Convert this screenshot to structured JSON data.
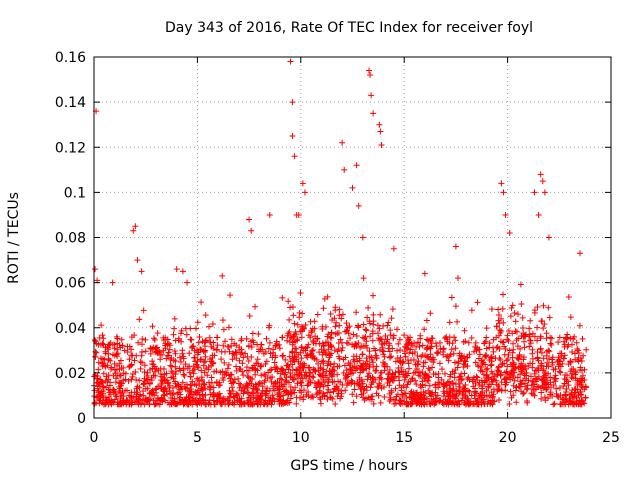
{
  "colors": {
    "series": "#ff0000",
    "axis": "#000000",
    "grid": "#a0a0a0",
    "background": "#ffffff"
  },
  "chart_data": {
    "type": "scatter",
    "title": "Day 343 of 2016, Rate Of TEC Index for receiver foyl",
    "xlabel": "GPS time / hours",
    "ylabel": "ROTI / TECUs",
    "xlim": [
      0,
      25
    ],
    "ylim": [
      0,
      0.16
    ],
    "xticks": [
      0,
      5,
      10,
      15,
      20,
      25
    ],
    "xtick_labels": [
      "0",
      "5",
      "10",
      "15",
      "20",
      "25"
    ],
    "yticks": [
      0,
      0.02,
      0.04,
      0.06,
      0.08,
      0.1,
      0.12,
      0.14,
      0.16
    ],
    "ytick_labels": [
      "0",
      "0.02",
      "0.04",
      "0.06",
      "0.08",
      "0.1",
      "0.12",
      "0.14",
      "0.16"
    ],
    "grid": true,
    "marker": "+",
    "series": [
      {
        "name": "ROTI",
        "note_points": "dense cloud of ~0.005-0.05 TECU values from 0 to 23.8 h; listed points are notable outliers/spikes",
        "x": [
          0.05,
          0.1,
          0.15,
          0.9,
          1.9,
          2.0,
          2.1,
          2.3,
          4.0,
          4.3,
          4.5,
          6.2,
          7.5,
          7.6,
          8.5,
          9.5,
          9.6,
          9.6,
          9.7,
          9.8,
          9.9,
          10.1,
          10.2,
          12.0,
          12.1,
          12.5,
          12.7,
          12.8,
          13.0,
          13.3,
          13.35,
          13.4,
          13.5,
          13.8,
          13.85,
          13.9,
          14.5,
          16.0,
          17.5,
          17.6,
          19.7,
          19.8,
          19.9,
          20.1,
          21.3,
          21.5,
          21.6,
          21.7,
          21.8,
          22.0,
          23.5
        ],
        "y": [
          0.066,
          0.136,
          0.061,
          0.06,
          0.083,
          0.085,
          0.07,
          0.065,
          0.066,
          0.065,
          0.06,
          0.063,
          0.088,
          0.083,
          0.09,
          0.158,
          0.14,
          0.125,
          0.116,
          0.09,
          0.09,
          0.104,
          0.1,
          0.122,
          0.11,
          0.102,
          0.112,
          0.094,
          0.08,
          0.154,
          0.152,
          0.143,
          0.135,
          0.13,
          0.127,
          0.121,
          0.075,
          0.064,
          0.076,
          0.062,
          0.104,
          0.1,
          0.09,
          0.082,
          0.1,
          0.09,
          0.108,
          0.105,
          0.1,
          0.08,
          0.073
        ]
      }
    ]
  }
}
